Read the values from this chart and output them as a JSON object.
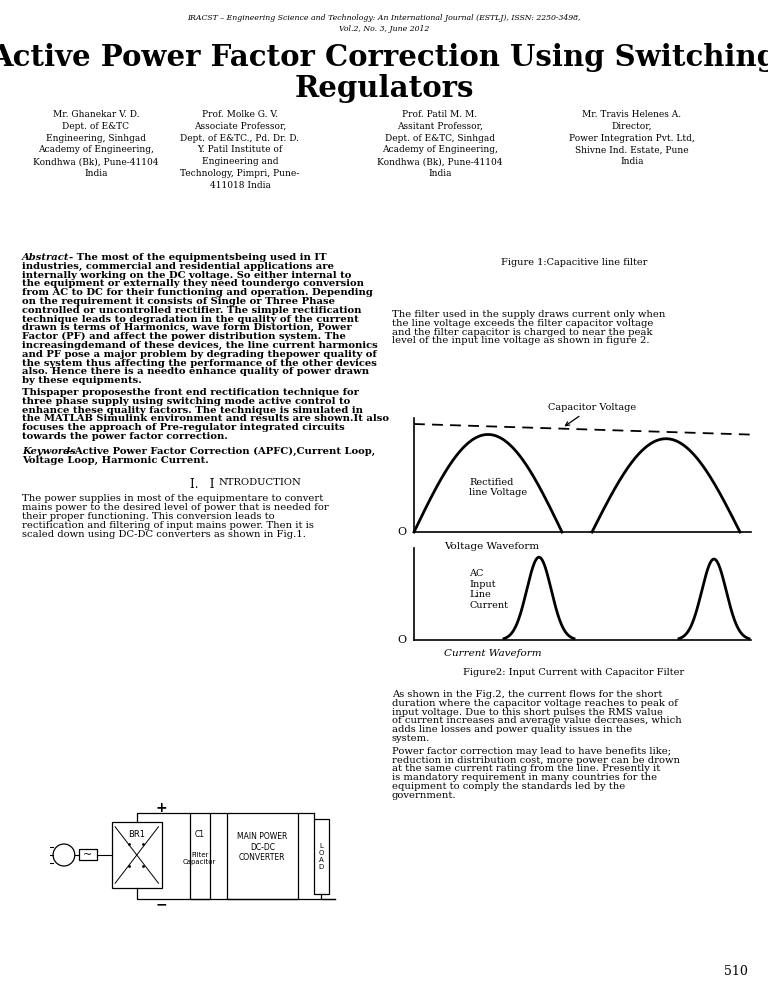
{
  "page_width": 7.68,
  "page_height": 9.94,
  "bg": "#ffffff",
  "header1": "IRACST – Engineering Science and Technology: An International Journal (ESTLJ), ISSN: 2250-3498,",
  "header2": "Vol.2, No. 3, June 2012",
  "title1": "Active Power Factor Correction Using Switching",
  "title2": "Regulators",
  "a1": [
    "Mr. Ghanekar V. D.",
    "Dept. of E&TC",
    "Engineering, Sinhgad",
    "Academy of Engineering,",
    "Kondhwa (Bk), Pune-41104",
    "India"
  ],
  "a2": [
    "Prof. Molke G. V.",
    "Associate Professor,",
    "Dept. of E&TC., Pd. Dr. D.",
    "Y. Patil Institute of",
    "Engineering and",
    "Technology, Pimpri, Pune-",
    "411018 India"
  ],
  "a3": [
    "Prof. Patil M. M.",
    "Assitant Professor,",
    "Dept. of E&TC, Sinhgad",
    "Academy of Engineering,",
    "Kondhwa (Bk), Pune-41104",
    "India"
  ],
  "a4": [
    "Mr. Travis Helenes A.",
    "Director,",
    "Power Integration Pvt. Ltd,",
    "Shivne Ind. Estate, Pune",
    "India"
  ],
  "fig1_caption": "Figure 1:Capacitive line filter",
  "fig2_caption": "Figure2: Input Current with Capacitor Filter",
  "abstract_bold": "The most of the equipmentsbeing used in IT industries, commercial and residential applications are internally working on the DC voltage. So either internal to the equipment or externally they need toundergo conversion from AC to DC for their functioning and operation. Depending on the requirement it consists of Single or Three Phase controlled or uncontrolled rectifier. The simple rectification technique leads to degradation in the quality of the current drawn is terms of Harmonics, wave form Distortion, Power Factor (PF) and affect the power distribution system. The increasingdemand of these devices, the line current harmonics and PF pose a major problem by degrading thepower quality of the system thus affecting the performance of the other devices also. Hence there is a needto enhance quality of power drawn by these equipments.",
  "abstract_p2": "Thispaper proposesthe front end rectification technique for three phase supply using switching mode active control to enhance these quality factors. The technique is simulated in the MATLAB Simulink environment and results are shown.It also focuses the approach of Pre-regulator integrated circuits towards the power factor correction.",
  "kw_body": "—Active Power Factor Correction (APFC),Current Loop, Voltage Loop, Harmonic Current.",
  "intro": "The power supplies in most of the equipmentare to convert mains power to the desired level of power that is needed for their proper functioning. This conversion leads to rectification and filtering of input mains power. Then it is scaled down using DC-DC converters as shown in Fig.1.",
  "rp1": "The filter used in the supply draws current only when the line voltage exceeds the filter capacitor voltage and the filter capacitor is charged to near the peak level of the input line voltage as shown in figure 2.",
  "rp2": "As shown in the Fig.2, the current flows for the short duration where the capacitor voltage reaches to peak of input voltage. Due to this short pulses the RMS value of current increases and average value decreases, which adds line losses and power quality issues in the system.",
  "rp3": "Power factor correction may lead to have benefits like; reduction in distribution cost, more power can be drown at the same current rating from the line. Presently it is mandatory requirement in many countries for the equipment to comply the standards led by the government.",
  "page_num": "510",
  "vol_lbl": "Voltage Waveform",
  "cur_lbl": "Current Waveform",
  "cap_v_lbl": "Capacitor Voltage",
  "rect_lbl": "Rectified\nline Voltage",
  "ac_lbl": "AC\nInput\nLine\nCurrent",
  "load_lbl": "L\nO\nA\nD"
}
